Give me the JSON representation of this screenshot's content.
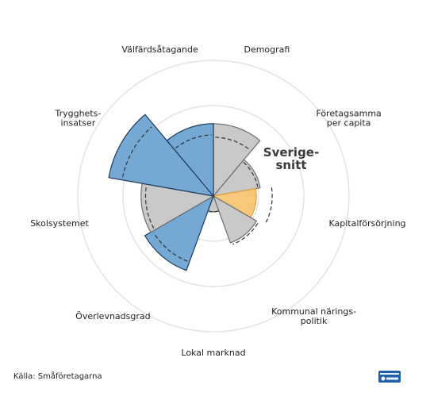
{
  "chart_data": {
    "type": "polar-area",
    "max_value": 3,
    "grid_rings": [
      1,
      2,
      3
    ],
    "categories": [
      "Demografi",
      "Företagsamma per capita",
      "Kapitalförsörjning",
      "Kommunal närings-politik",
      "Lokal marknad",
      "Överlevnadsgrad",
      "Skolsystemet",
      "Trygghets-insatser",
      "Välfärdsåtagande"
    ],
    "label_lines": [
      [
        "Demografi"
      ],
      [
        "Företagsamma",
        "per capita"
      ],
      [
        "Kapitalförsörjning"
      ],
      [
        "Kommunal närings-",
        "politik"
      ],
      [
        "Lokal marknad"
      ],
      [
        "Överlevnadsgrad"
      ],
      [
        "Skolsystemet"
      ],
      [
        "Trygghets-",
        "insatser"
      ],
      [
        "Välfärdsåtagande"
      ]
    ],
    "values": [
      1.6,
      1.05,
      0.95,
      1.1,
      0.35,
      1.75,
      1.6,
      2.35,
      1.6
    ],
    "average": [
      1.3,
      1.0,
      1.3,
      1.15,
      0.35,
      1.55,
      1.5,
      2.05,
      1.35
    ],
    "status": [
      "neutral",
      "neutral",
      "below",
      "neutral",
      "neutral",
      "above",
      "neutral",
      "above",
      "above"
    ],
    "colors": {
      "above": "#76a8d4",
      "above_stroke": "#1f3b5c",
      "neutral": "#c9c9c9",
      "neutral_stroke": "#6e6e6e",
      "below": "#f5c87c",
      "below_stroke": "#e1a23c",
      "grid": "#e3e3e3",
      "average_line": "#333333"
    },
    "average_label": [
      "Sverige-",
      "snitt"
    ]
  },
  "source": "Källa: Småföretagarna",
  "logo_name": "smaforetagarna-logo"
}
